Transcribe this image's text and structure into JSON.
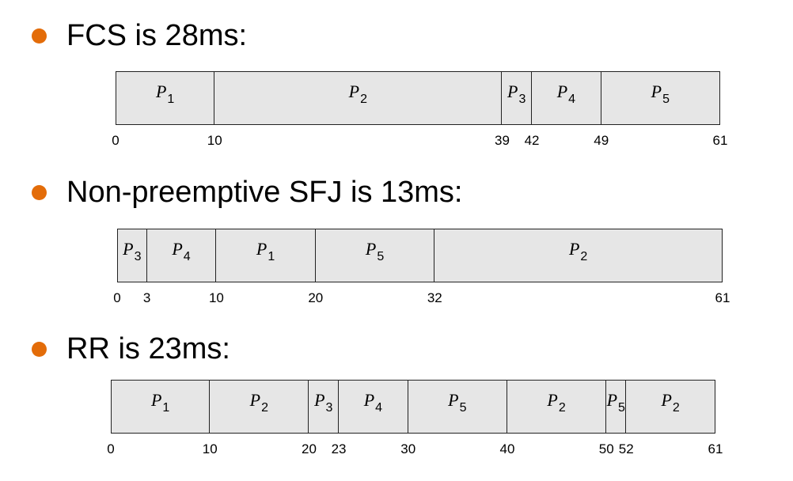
{
  "accent_color": "#e36c09",
  "segment_fill": "#e6e6e6",
  "sections": [
    {
      "heading": "FCS is 28ms:",
      "segments": [
        {
          "p": "P",
          "n": "1",
          "start": 0,
          "end": 10
        },
        {
          "p": "P",
          "n": "2",
          "start": 10,
          "end": 39
        },
        {
          "p": "P",
          "n": "3",
          "start": 39,
          "end": 42
        },
        {
          "p": "P",
          "n": "4",
          "start": 42,
          "end": 49
        },
        {
          "p": "P",
          "n": "5",
          "start": 49,
          "end": 61
        }
      ],
      "ticks": [
        "0",
        "10",
        "39",
        "42",
        "49",
        "61"
      ]
    },
    {
      "heading": "Non-preemptive SFJ is 13ms:",
      "segments": [
        {
          "p": "P",
          "n": "3",
          "start": 0,
          "end": 3
        },
        {
          "p": "P",
          "n": "4",
          "start": 3,
          "end": 10
        },
        {
          "p": "P",
          "n": "1",
          "start": 10,
          "end": 20
        },
        {
          "p": "P",
          "n": "5",
          "start": 20,
          "end": 32
        },
        {
          "p": "P",
          "n": "2",
          "start": 32,
          "end": 61
        }
      ],
      "ticks": [
        "0",
        "3",
        "10",
        "20",
        "32",
        "61"
      ]
    },
    {
      "heading": "RR is 23ms:",
      "segments": [
        {
          "p": "P",
          "n": "1",
          "start": 0,
          "end": 10
        },
        {
          "p": "P",
          "n": "2",
          "start": 10,
          "end": 20
        },
        {
          "p": "P",
          "n": "3",
          "start": 20,
          "end": 23
        },
        {
          "p": "P",
          "n": "4",
          "start": 23,
          "end": 30
        },
        {
          "p": "P",
          "n": "5",
          "start": 30,
          "end": 40
        },
        {
          "p": "P",
          "n": "2",
          "start": 40,
          "end": 50
        },
        {
          "p": "P",
          "n": "5",
          "start": 50,
          "end": 52
        },
        {
          "p": "P",
          "n": "2",
          "start": 52,
          "end": 61
        }
      ],
      "ticks": [
        "0",
        "10",
        "20",
        "23",
        "30",
        "40",
        "50",
        "52",
        "61"
      ]
    }
  ]
}
